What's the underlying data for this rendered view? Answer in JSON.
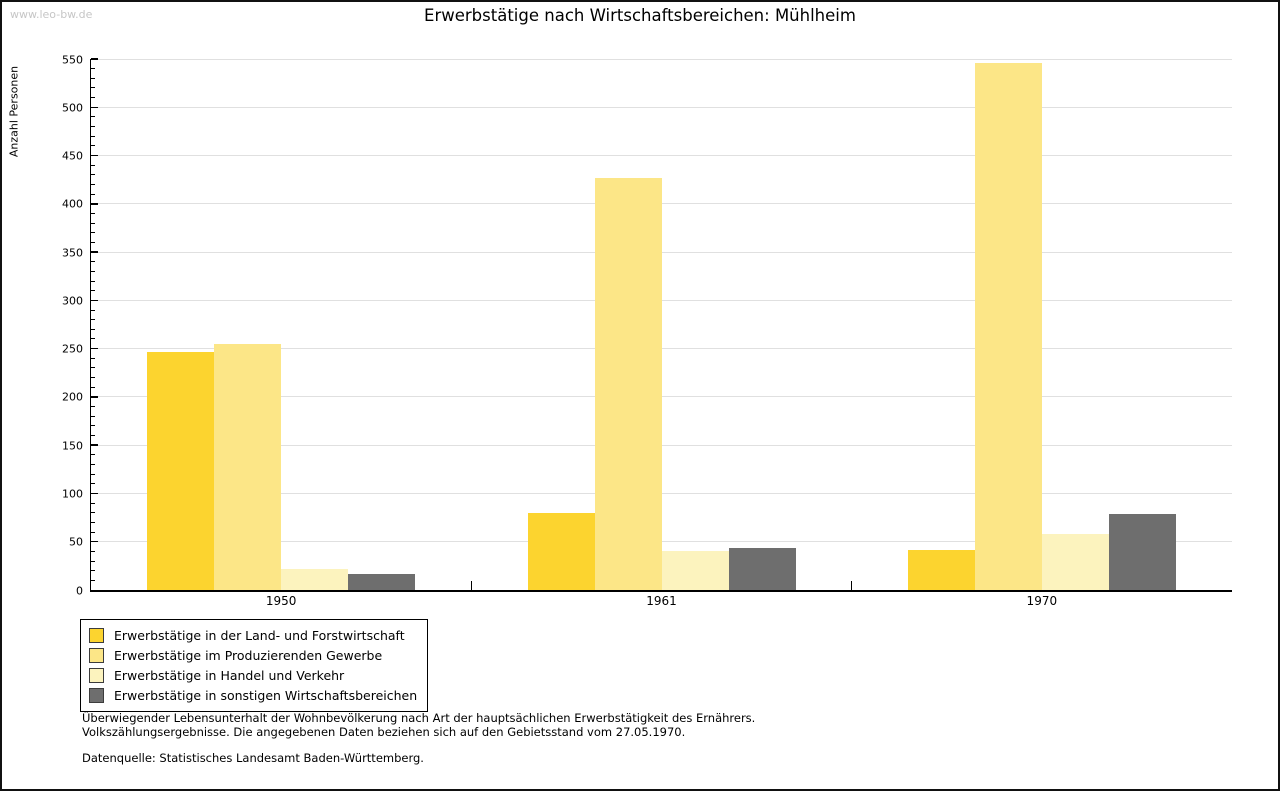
{
  "watermark": "www.leo-bw.de",
  "title": "Erwerbstätige nach Wirtschaftsbereichen: Mühlheim",
  "footnotes": {
    "line1": "Überwiegender Lebensunterhalt der Wohnbevölkerung nach Art der hauptsächlichen Erwerbstätigkeit des Ernährers.",
    "line2": "Volkszählungsergebnisse. Die angegebenen Daten beziehen sich auf den Gebietsstand vom 27.05.1970.",
    "source": "Datenquelle: Statistisches Landesamt Baden-Württemberg."
  },
  "chart_data": {
    "type": "bar",
    "title": "Erwerbstätige nach Wirtschaftsbereichen: Mühlheim",
    "categories": [
      "1950",
      "1961",
      "1970"
    ],
    "series": [
      {
        "name": "Erwerbstätige in der Land- und Forstwirtschaft",
        "color": "#FCD42F",
        "values": [
          247,
          80,
          41
        ]
      },
      {
        "name": "Erwerbstätige im Produzierenden Gewerbe",
        "color": "#FCE687",
        "values": [
          255,
          427,
          546
        ]
      },
      {
        "name": "Erwerbstätige in Handel und Verkehr",
        "color": "#FCF3BE",
        "values": [
          22,
          40,
          58
        ]
      },
      {
        "name": "Erwerbstätige in sonstigen Wirtschaftsbereichen",
        "color": "#6E6E6E",
        "values": [
          17,
          44,
          79
        ]
      }
    ],
    "xlabel": "",
    "ylabel": "Anzahl Personen",
    "ylim": [
      0,
      550
    ],
    "ytick_step": 50,
    "yminortick_step": 10,
    "grid": true,
    "legend_position": "bottom-left",
    "axis_color": "#000000",
    "grid_color": "#E0E0E0"
  }
}
